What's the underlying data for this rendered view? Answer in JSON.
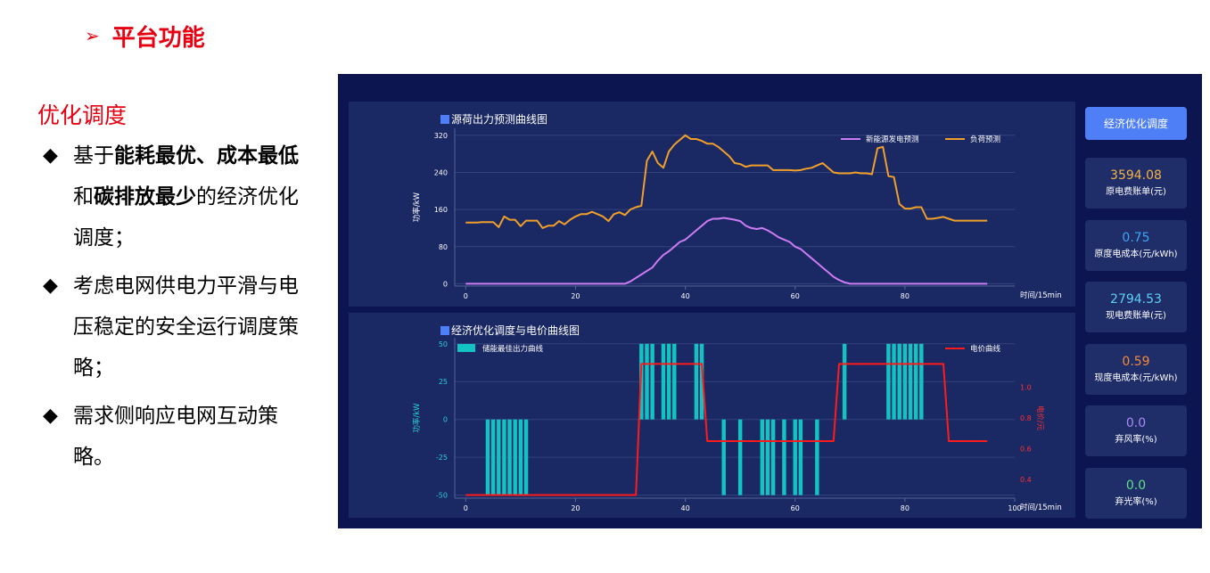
{
  "slide": {
    "title": "平台功能",
    "arrow_glyph": "➢",
    "section_heading": "优化调度",
    "bullet_glyph": "◆",
    "bullets": [
      {
        "parts": [
          {
            "text": "基于",
            "bold": false
          },
          {
            "text": "能耗最优、成本最低",
            "bold": true
          },
          {
            "text": "和",
            "bold": false
          },
          {
            "text": "碳排放最少",
            "bold": true
          },
          {
            "text": "的经济优化调度；",
            "bold": false
          }
        ]
      },
      {
        "parts": [
          {
            "text": "考虑电网供电力平滑与电压稳定的安全运行调度策略；",
            "bold": false
          }
        ]
      },
      {
        "parts": [
          {
            "text": "需求侧响应电网互动策略。",
            "bold": false
          }
        ]
      }
    ]
  },
  "dashboard": {
    "button_label": "经济优化调度",
    "kpis": [
      {
        "value": "3594.08",
        "label": "原电费账单(元)",
        "color": "#f5b342"
      },
      {
        "value": "0.75",
        "label": "原度电成本(元/kWh)",
        "color": "#3fa6f5"
      },
      {
        "value": "2794.53",
        "label": "现电费账单(元)",
        "color": "#5fd0f7"
      },
      {
        "value": "0.59",
        "label": "现度电成本(元/kWh)",
        "color": "#f58a3b"
      },
      {
        "value": "0.0",
        "label": "弃风率(%)",
        "color": "#a98bf2"
      },
      {
        "value": "0.0",
        "label": "弃光率(%)",
        "color": "#5fe08a"
      }
    ]
  },
  "chart_data": [
    {
      "type": "line",
      "title": "源荷出力预测曲线图",
      "xlabel": "时间/15min",
      "ylabel": "功率/kW",
      "xlim": [
        -2,
        100
      ],
      "ylim": [
        -5,
        335
      ],
      "xticks": [
        0,
        20,
        40,
        60,
        80
      ],
      "yticks": [
        0,
        80,
        160,
        240,
        320
      ],
      "legend_position": "top-right",
      "grid": true,
      "series": [
        {
          "name": "新能源发电预测",
          "color": "#cc7cf2",
          "x": [
            0,
            29,
            30,
            32,
            34,
            35,
            36,
            37,
            38,
            39,
            40,
            41,
            42,
            43,
            44,
            45,
            46,
            47,
            48,
            49,
            50,
            51,
            52,
            53,
            54,
            55,
            56,
            57,
            58,
            59,
            60,
            61,
            62,
            63,
            64,
            65,
            66,
            67,
            68,
            69,
            70,
            95
          ],
          "y": [
            0,
            0,
            5,
            20,
            35,
            50,
            62,
            70,
            80,
            90,
            95,
            105,
            115,
            125,
            135,
            140,
            140,
            142,
            140,
            138,
            135,
            125,
            120,
            118,
            120,
            115,
            108,
            100,
            95,
            90,
            80,
            75,
            65,
            55,
            45,
            35,
            25,
            15,
            8,
            3,
            0,
            0
          ]
        },
        {
          "name": "负荷预测",
          "color": "#f0a02a",
          "x": [
            0,
            1,
            2,
            3,
            4,
            5,
            6,
            7,
            8,
            9,
            10,
            11,
            12,
            13,
            14,
            15,
            16,
            17,
            18,
            19,
            20,
            21,
            22,
            23,
            24,
            25,
            26,
            27,
            28,
            29,
            30,
            31,
            32,
            33,
            34,
            35,
            36,
            37,
            38,
            39,
            40,
            41,
            42,
            43,
            44,
            45,
            46,
            47,
            48,
            49,
            50,
            51,
            52,
            53,
            54,
            55,
            56,
            57,
            58,
            59,
            60,
            61,
            62,
            63,
            64,
            65,
            66,
            67,
            68,
            69,
            70,
            71,
            72,
            73,
            74,
            75,
            76,
            77,
            78,
            79,
            80,
            81,
            82,
            83,
            84,
            85,
            86,
            87,
            88,
            89,
            90,
            91,
            92,
            93,
            94,
            95
          ],
          "y": [
            132,
            132,
            132,
            133,
            133,
            133,
            122,
            145,
            138,
            138,
            124,
            136,
            136,
            136,
            120,
            125,
            125,
            135,
            128,
            138,
            145,
            150,
            150,
            155,
            150,
            145,
            135,
            150,
            154,
            148,
            160,
            165,
            168,
            265,
            285,
            260,
            250,
            285,
            300,
            310,
            320,
            312,
            312,
            308,
            302,
            302,
            295,
            285,
            275,
            260,
            258,
            252,
            255,
            255,
            255,
            255,
            245,
            245,
            245,
            245,
            244,
            245,
            248,
            250,
            255,
            260,
            250,
            240,
            238,
            238,
            238,
            240,
            238,
            238,
            236,
            292,
            295,
            232,
            230,
            172,
            162,
            162,
            165,
            165,
            140,
            140,
            142,
            144,
            140,
            136,
            136,
            136,
            136,
            136,
            136,
            136
          ]
        }
      ]
    },
    {
      "type": "bar",
      "title": "经济优化调度与电价曲线图",
      "xlabel": "时间/15min",
      "ylabel": "功率/kW",
      "ylabel_right": "电价/元",
      "xlim": [
        -2,
        100
      ],
      "ylim": [
        -52,
        54
      ],
      "ylim_right": [
        0.28,
        1.32
      ],
      "xticks": [
        0,
        20,
        40,
        60,
        80,
        100
      ],
      "yticks": [
        -50,
        -25,
        0,
        25,
        50
      ],
      "yticks_right": [
        0.4,
        0.6,
        0.8,
        1.0
      ],
      "legend_position": "top",
      "grid": true,
      "series": [
        {
          "name": "储能最佳出力曲线",
          "color": "#13c3c3",
          "kind": "bar",
          "x": [
            4,
            5,
            6,
            7,
            8,
            9,
            10,
            11,
            32,
            33,
            34,
            36,
            37,
            38,
            42,
            43,
            47,
            50,
            54,
            55,
            56,
            58,
            60,
            61,
            64,
            69,
            77,
            78,
            79,
            80,
            81,
            82,
            83
          ],
          "y": [
            -50,
            -50,
            -50,
            -50,
            -50,
            -50,
            -50,
            -50,
            50,
            50,
            50,
            50,
            50,
            50,
            50,
            50,
            -50,
            -50,
            -50,
            -50,
            -50,
            -50,
            -50,
            -50,
            -50,
            50,
            50,
            50,
            50,
            50,
            50,
            50,
            50
          ]
        },
        {
          "name": "电价曲线",
          "color": "#ff1b1b",
          "kind": "line",
          "axis": "right",
          "x": [
            0,
            31,
            32,
            43,
            44,
            67,
            68,
            87,
            88,
            95
          ],
          "y": [
            0.3,
            0.3,
            1.15,
            1.15,
            0.65,
            0.65,
            1.15,
            1.15,
            0.65,
            0.65
          ]
        }
      ]
    }
  ]
}
